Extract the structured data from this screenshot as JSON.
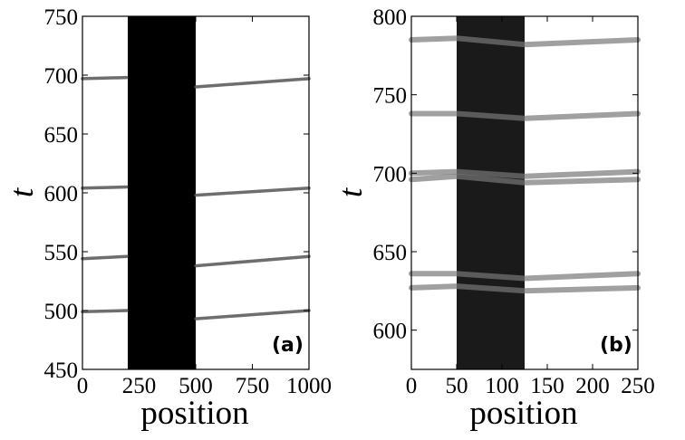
{
  "chart_data": [
    {
      "type": "line",
      "panel_label": "(a)",
      "xlabel": "position",
      "ylabel": "t",
      "xlim": [
        0,
        1000
      ],
      "ylim": [
        450,
        750
      ],
      "xticks": [
        0,
        250,
        500,
        750,
        1000
      ],
      "yticks": [
        450,
        500,
        550,
        600,
        650,
        700,
        750
      ],
      "xtick_labels": [
        "0",
        "250",
        "500",
        "750",
        "1000"
      ],
      "ytick_labels": [
        "450",
        "500",
        "550",
        "600",
        "650",
        "700",
        "750"
      ],
      "shaded_region": {
        "x": [
          200,
          500
        ],
        "color": "#000000"
      },
      "grid": false,
      "colors": {
        "traces": "#555555",
        "strong": "#111111"
      },
      "series": [
        {
          "points": [
            [
              0,
              499
            ],
            [
              195,
              500
            ]
          ]
        },
        {
          "points": [
            [
              0,
              604
            ],
            [
              195,
              605
            ]
          ]
        },
        {
          "points": [
            [
              0,
              544
            ],
            [
              195,
              546
            ]
          ]
        },
        {
          "points": [
            [
              0,
              697
            ],
            [
              195,
              698
            ]
          ]
        },
        {
          "points": [
            [
              500,
              493
            ],
            [
              1000,
              500
            ]
          ]
        },
        {
          "points": [
            [
              500,
              538
            ],
            [
              1000,
              546
            ]
          ]
        },
        {
          "points": [
            [
              500,
              598
            ],
            [
              1000,
              604
            ]
          ]
        },
        {
          "points": [
            [
              500,
              690
            ],
            [
              1000,
              697
            ]
          ]
        }
      ]
    },
    {
      "type": "line",
      "panel_label": "(b)",
      "xlabel": "position",
      "ylabel": "t",
      "xlim": [
        0,
        250
      ],
      "ylim": [
        575,
        800
      ],
      "xticks": [
        0,
        50,
        100,
        150,
        200,
        250
      ],
      "yticks": [
        600,
        650,
        700,
        750,
        800
      ],
      "xtick_labels": [
        "0",
        "50",
        "100",
        "150",
        "200",
        "250"
      ],
      "ytick_labels": [
        "600",
        "650",
        "700",
        "750",
        "800"
      ],
      "shaded_region": {
        "x": [
          50,
          125
        ],
        "color": "#1a1a1a"
      },
      "grid": false,
      "colors": {
        "traces": "#777777",
        "strong": "#444444"
      },
      "series": [
        {
          "points": [
            [
              0,
              627
            ],
            [
              50,
              628
            ],
            [
              125,
              625
            ],
            [
              250,
              627
            ]
          ]
        },
        {
          "points": [
            [
              0,
              636
            ],
            [
              50,
              636
            ],
            [
              125,
              633
            ],
            [
              250,
              636
            ]
          ]
        },
        {
          "points": [
            [
              0,
              696
            ],
            [
              50,
              698
            ],
            [
              125,
              694
            ],
            [
              250,
              696
            ]
          ]
        },
        {
          "points": [
            [
              0,
              700
            ],
            [
              50,
              701
            ],
            [
              125,
              698
            ],
            [
              250,
              701
            ]
          ]
        },
        {
          "points": [
            [
              0,
              738
            ],
            [
              50,
              738
            ],
            [
              125,
              735
            ],
            [
              250,
              738
            ]
          ]
        },
        {
          "points": [
            [
              0,
              785
            ],
            [
              50,
              786
            ],
            [
              125,
              782
            ],
            [
              250,
              785
            ]
          ]
        }
      ]
    }
  ]
}
